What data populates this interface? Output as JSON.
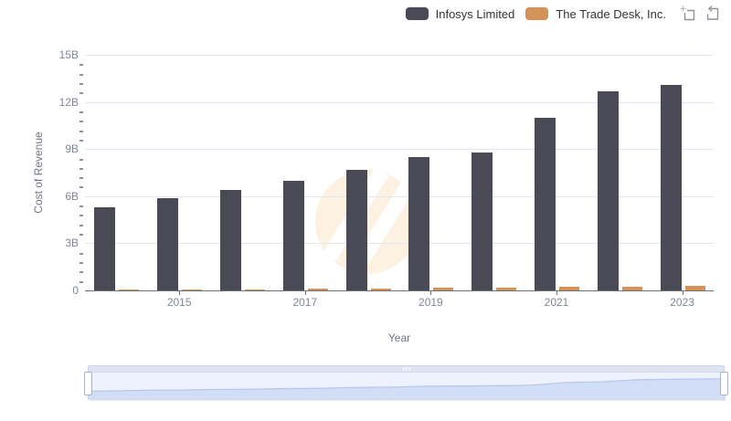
{
  "legend": {
    "items": [
      {
        "label": "Infosys Limited",
        "color": "#4a4a57"
      },
      {
        "label": "The Trade Desk, Inc.",
        "color": "#d2925a"
      }
    ]
  },
  "toolbox": {
    "zoom_tooltip": "Zoom",
    "restore_tooltip": "Restore"
  },
  "chart_data": {
    "type": "bar",
    "title": "",
    "xlabel": "Year",
    "ylabel": "Cost of Revenue",
    "unit": "B",
    "categories": [
      "2014",
      "2015",
      "2016",
      "2017",
      "2018",
      "2019",
      "2020",
      "2021",
      "2022",
      "2023"
    ],
    "series": [
      {
        "name": "Infosys Limited",
        "color": "#4a4a57",
        "values": [
          5.3,
          5.9,
          6.4,
          7.0,
          7.7,
          8.5,
          8.8,
          11.0,
          12.7,
          13.1
        ]
      },
      {
        "name": "The Trade Desk, Inc.",
        "color": "#d2925a",
        "values": [
          0.03,
          0.05,
          0.08,
          0.11,
          0.14,
          0.16,
          0.18,
          0.21,
          0.25,
          0.31
        ]
      }
    ],
    "ylim": [
      0,
      15
    ],
    "y_tick_values": [
      0,
      3,
      6,
      9,
      12,
      15
    ],
    "y_tick_labels": [
      "0",
      "3B",
      "6B",
      "9B",
      "12B",
      "15B"
    ],
    "y_minor_tick_step": 0.6,
    "x_tick_labels": [
      "2015",
      "2017",
      "2019",
      "2021",
      "2023"
    ],
    "grid": true,
    "legend_position": "top-right"
  },
  "colors": {
    "grid": "#e2e7f3",
    "axis_line": "#6e7079",
    "tick_label": "#7f8798",
    "minor_tick": "#8b93a5",
    "watermark": "#fdf2e2",
    "slider_fill": "#d2ddf6",
    "slider_line": "#b4c5ef"
  },
  "datazoom": {
    "start": "2014",
    "end": "2023"
  }
}
